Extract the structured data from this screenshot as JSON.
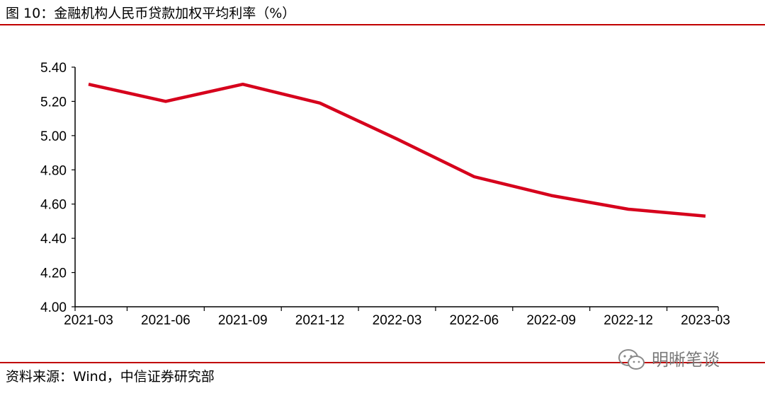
{
  "header": {
    "title": "图 10：金融机构人民币贷款加权平均利率（%）"
  },
  "footer": {
    "source": "资料来源：Wind，中信证券研究部"
  },
  "watermark": {
    "text": "明晰笔谈",
    "icon": "wechat-icon"
  },
  "colors": {
    "accent": "#c00000",
    "line": "#d6001c",
    "watermark": "#7a7a7a"
  },
  "chart_data": {
    "type": "line",
    "categories": [
      "2021-03",
      "2021-06",
      "2021-09",
      "2021-12",
      "2022-03",
      "2022-06",
      "2022-09",
      "2022-12",
      "2023-03"
    ],
    "series": [
      {
        "values": [
          5.3,
          5.2,
          5.3,
          5.19,
          4.98,
          4.76,
          4.65,
          4.57,
          4.53
        ]
      }
    ],
    "y_ticks": [
      "4.00",
      "4.20",
      "4.40",
      "4.60",
      "4.80",
      "5.00",
      "5.20",
      "5.40"
    ],
    "ylim": [
      4.0,
      5.4
    ],
    "xlabel": "",
    "ylabel": "",
    "grid": false,
    "legend": "none"
  }
}
